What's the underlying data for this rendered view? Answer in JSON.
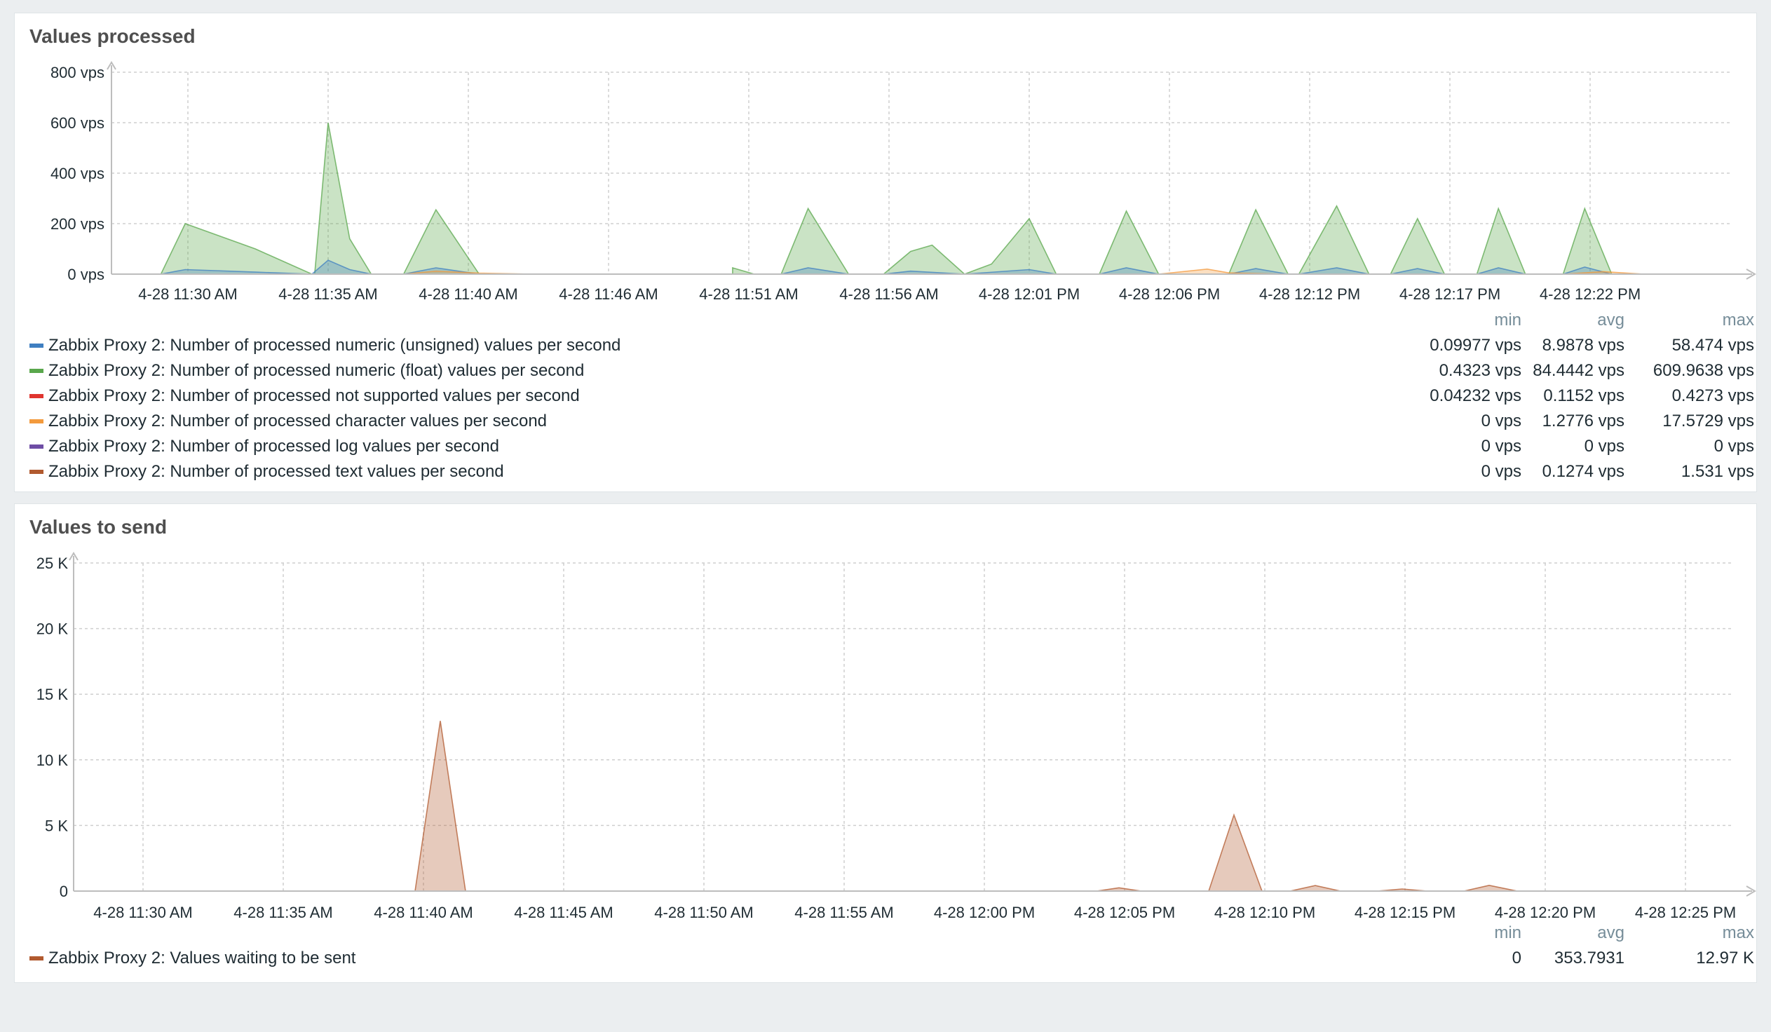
{
  "charts": [
    {
      "title": "Values processed",
      "chart_data": {
        "type": "area",
        "ylim": [
          0,
          800
        ],
        "unit": "vps",
        "y_ticks": [
          "0 vps",
          "200 vps",
          "400 vps",
          "600 vps",
          "800 vps"
        ],
        "x_tick_labels": [
          "4-28 11:30 AM",
          "4-28 11:35 AM",
          "4-28 11:40 AM",
          "4-28 11:46 AM",
          "4-28 11:51 AM",
          "4-28 11:56 AM",
          "4-28 12:01 PM",
          "4-28 12:06 PM",
          "4-28 12:12 PM",
          "4-28 12:17 PM",
          "4-28 12:22 PM"
        ],
        "x_minutes_start": "4-28 11:30 AM",
        "grid": true,
        "series": [
          {
            "name": "Zabbix Proxy 2: Number of processed numeric (float) values per second",
            "color": "#59a74c",
            "points": [
              [
                -2.0,
                0
              ],
              [
                -1.0,
                0
              ],
              [
                -0.1,
                200
              ],
              [
                2.5,
                100
              ],
              [
                4.6,
                0
              ],
              [
                4.7,
                0
              ],
              [
                5.2,
                600
              ],
              [
                6.0,
                140
              ],
              [
                6.8,
                0
              ],
              [
                8.0,
                0
              ],
              [
                9.2,
                255
              ],
              [
                10.8,
                0
              ],
              [
                11.5,
                0
              ],
              [
                12.8,
                0
              ]
            ]
          },
          {
            "name": "Zabbix Proxy 2: Number of processed numeric (float) values per second",
            "color": "#59a74c",
            "points": [
              [
                20.2,
                25
              ],
              [
                21.0,
                0
              ],
              [
                22.0,
                0
              ],
              [
                23.0,
                260
              ],
              [
                24.5,
                0
              ],
              [
                25.8,
                0
              ],
              [
                26.8,
                90
              ],
              [
                27.6,
                115
              ],
              [
                28.8,
                0
              ],
              [
                29.8,
                40
              ],
              [
                31.2,
                220
              ],
              [
                32.2,
                0
              ],
              [
                33.8,
                0
              ],
              [
                34.8,
                250
              ],
              [
                36.0,
                0
              ],
              [
                37.8,
                0
              ],
              [
                38.6,
                0
              ],
              [
                39.6,
                255
              ],
              [
                40.8,
                0
              ],
              [
                41.2,
                0
              ],
              [
                42.6,
                270
              ],
              [
                43.8,
                0
              ],
              [
                44.6,
                0
              ],
              [
                45.6,
                220
              ],
              [
                46.6,
                0
              ],
              [
                47.8,
                0
              ],
              [
                48.6,
                260
              ],
              [
                49.6,
                0
              ],
              [
                51.0,
                0
              ],
              [
                51.8,
                260
              ],
              [
                52.8,
                0
              ],
              [
                54.0,
                0
              ]
            ]
          },
          {
            "name": "Zabbix Proxy 2: Number of processed numeric (unsigned) values per second",
            "color": "#3f7fc1",
            "points": [
              [
                -2.0,
                0
              ],
              [
                -1.0,
                0
              ],
              [
                -0.1,
                18
              ],
              [
                2.5,
                8
              ],
              [
                4.6,
                0
              ],
              [
                5.2,
                55
              ],
              [
                6.0,
                18
              ],
              [
                6.8,
                0
              ],
              [
                8.0,
                0
              ],
              [
                9.2,
                25
              ],
              [
                10.8,
                0
              ],
              [
                12.8,
                0
              ]
            ]
          },
          {
            "name": "Zabbix Proxy 2: Number of processed numeric (unsigned) values per second",
            "color": "#3f7fc1",
            "points": [
              [
                20.2,
                0
              ],
              [
                22.0,
                0
              ],
              [
                23.0,
                25
              ],
              [
                24.5,
                0
              ],
              [
                25.8,
                0
              ],
              [
                26.8,
                12
              ],
              [
                28.8,
                0
              ],
              [
                31.2,
                18
              ],
              [
                32.2,
                0
              ],
              [
                33.8,
                0
              ],
              [
                34.8,
                25
              ],
              [
                36.0,
                0
              ],
              [
                38.6,
                0
              ],
              [
                39.6,
                22
              ],
              [
                40.8,
                0
              ],
              [
                41.2,
                0
              ],
              [
                42.6,
                25
              ],
              [
                43.8,
                0
              ],
              [
                44.6,
                0
              ],
              [
                45.6,
                22
              ],
              [
                46.6,
                0
              ],
              [
                47.8,
                0
              ],
              [
                48.6,
                25
              ],
              [
                49.6,
                0
              ],
              [
                51.0,
                0
              ],
              [
                51.8,
                28
              ],
              [
                52.8,
                0
              ],
              [
                54.0,
                0
              ]
            ]
          },
          {
            "name": "Zabbix Proxy 2: Number of processed character values per second",
            "color": "#f39a3d",
            "points": [
              [
                8.0,
                0
              ],
              [
                9.2,
                12
              ],
              [
                10.8,
                4
              ],
              [
                12.8,
                0
              ],
              [
                36.0,
                0
              ],
              [
                37.8,
                20
              ],
              [
                38.6,
                5
              ],
              [
                40.8,
                0
              ],
              [
                51.0,
                0
              ],
              [
                52.5,
                10
              ],
              [
                54.0,
                0
              ]
            ]
          }
        ],
        "legend": [
          {
            "name": "Zabbix Proxy 2: Number of processed numeric (unsigned) values per second",
            "color": "#3f7fc1",
            "min": "0.09977 vps",
            "avg": "8.9878 vps",
            "max": "58.474 vps"
          },
          {
            "name": "Zabbix Proxy 2: Number of processed numeric (float) values per second",
            "color": "#59a74c",
            "min": "0.4323 vps",
            "avg": "84.4442 vps",
            "max": "609.9638 vps"
          },
          {
            "name": "Zabbix Proxy 2: Number of processed not supported values per second",
            "color": "#e0352f",
            "min": "0.04232 vps",
            "avg": "0.1152 vps",
            "max": "0.4273 vps"
          },
          {
            "name": "Zabbix Proxy 2: Number of processed character values per second",
            "color": "#f39a3d",
            "min": "0 vps",
            "avg": "1.2776 vps",
            "max": "17.5729 vps"
          },
          {
            "name": "Zabbix Proxy 2: Number of processed log values per second",
            "color": "#6e4da5",
            "min": "0 vps",
            "avg": "0 vps",
            "max": "0 vps"
          },
          {
            "name": "Zabbix Proxy 2: Number of processed text values per second",
            "color": "#b15a2f",
            "min": "0 vps",
            "avg": "0.1274 vps",
            "max": "1.531 vps"
          }
        ]
      }
    },
    {
      "title": "Values to send",
      "chart_data": {
        "type": "area",
        "ylim": [
          0,
          25000
        ],
        "y_ticks": [
          "0",
          "5 K",
          "10 K",
          "15 K",
          "20 K",
          "25 K"
        ],
        "x_tick_labels": [
          "4-28 11:30 AM",
          "4-28 11:35 AM",
          "4-28 11:40 AM",
          "4-28 11:45 AM",
          "4-28 11:50 AM",
          "4-28 11:55 AM",
          "4-28 12:00 PM",
          "4-28 12:05 PM",
          "4-28 12:10 PM",
          "4-28 12:15 PM",
          "4-28 12:20 PM",
          "4-28 12:25 PM"
        ],
        "x_minutes_start": "4-28 11:30 AM",
        "grid": true,
        "series": [
          {
            "name": "Zabbix Proxy 2: Values waiting to be sent",
            "color": "#b15a2f",
            "points": [
              [
                -2.3,
                0
              ],
              [
                9.7,
                0
              ],
              [
                10.6,
                12970
              ],
              [
                11.5,
                0
              ],
              [
                34.0,
                0
              ],
              [
                34.8,
                250
              ],
              [
                35.6,
                0
              ],
              [
                38.0,
                0
              ],
              [
                38.9,
                5800
              ],
              [
                39.9,
                0
              ],
              [
                40.9,
                0
              ],
              [
                41.8,
                420
              ],
              [
                42.7,
                0
              ],
              [
                44.0,
                0
              ],
              [
                44.9,
                160
              ],
              [
                45.8,
                0
              ],
              [
                47.1,
                0
              ],
              [
                48.0,
                440
              ],
              [
                49.0,
                0
              ],
              [
                56.0,
                0
              ]
            ]
          }
        ],
        "legend": [
          {
            "name": "Zabbix Proxy 2: Values waiting to be sent",
            "color": "#b15a2f",
            "min": "0",
            "avg": "353.7931",
            "max": "12.97 K"
          }
        ]
      }
    }
  ],
  "stat_headers": {
    "min": "min",
    "avg": "avg",
    "max": "max"
  }
}
